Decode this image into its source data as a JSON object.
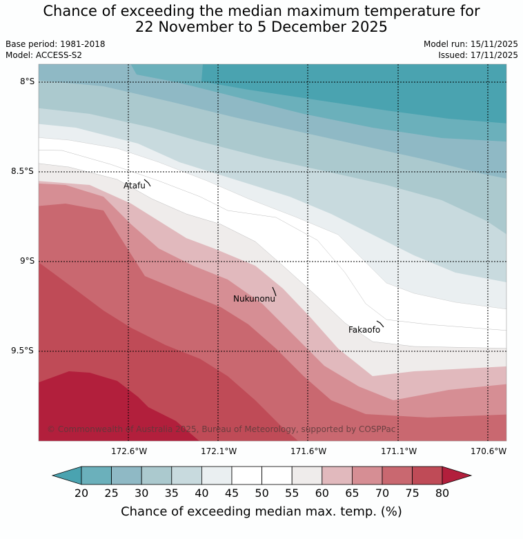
{
  "header": {
    "title_line1": "Chance of exceeding the median maximum temperature for",
    "title_line2": "22 November to 5 December 2025",
    "base_period": "Base period: 1981-2018",
    "model": "Model: ACCESS-S2",
    "model_run": "Model run: 15/11/2025",
    "issued": "Issued: 17/11/2025"
  },
  "map": {
    "lat_labels": [
      "8°S",
      "8.5°S",
      "9°S",
      "9.5°S"
    ],
    "lon_labels": [
      "172.6°W",
      "172.1°W",
      "171.6°W",
      "171.1°W",
      "170.6°W"
    ],
    "places": [
      {
        "name": "Atafu"
      },
      {
        "name": "Nukunonu"
      },
      {
        "name": "Fakaofo"
      }
    ],
    "copyright": "© Commonwealth of Australia 2025, Bureau of Meteorology, supported by COSPPac"
  },
  "colorbar": {
    "ticks": [
      "20",
      "25",
      "30",
      "35",
      "40",
      "45",
      "50",
      "55",
      "60",
      "65",
      "70",
      "75",
      "80"
    ],
    "colors": [
      "#4aa3b0",
      "#6bb0bb",
      "#8fb9c5",
      "#abc9ce",
      "#c8dade",
      "#eaeff1",
      "#ffffff",
      "#ffffff",
      "#efeceb",
      "#e1b9bd",
      "#d68e94",
      "#c96870",
      "#bf4b57",
      "#b21f3c"
    ],
    "title": "Chance of exceeding median max. temp. (%)"
  }
}
